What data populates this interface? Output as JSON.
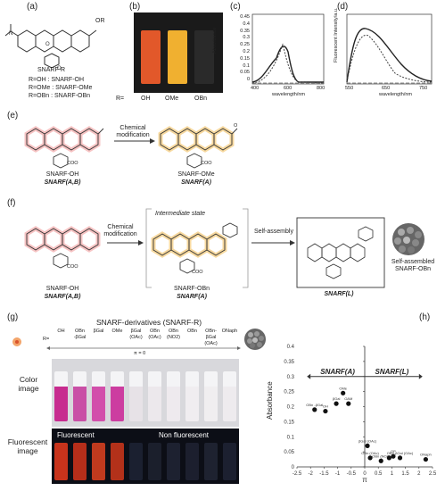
{
  "panel_labels": {
    "a": "(a)",
    "b": "(b)",
    "c": "(c)",
    "d": "(d)",
    "e": "(e)",
    "f": "(f)",
    "g": "(g)",
    "h": "(h)"
  },
  "panel_a": {
    "substituent": "OR",
    "name": "SNARF-R",
    "definitions": [
      "R=OH    : SNARF-OH",
      "R=OMe : SNARF-OMe",
      "R=OBn  : SNARF-OBn"
    ]
  },
  "panel_b": {
    "row_label": "R=",
    "samples": [
      "OH",
      "OMe",
      "OBn"
    ],
    "colors": [
      "#e2582a",
      "#f0b030",
      "#1a1a1a"
    ]
  },
  "panel_c": {
    "ylabel": "Absorbance",
    "xlabel": "wavelength/nm",
    "yticks": [
      "0.45",
      "0.4",
      "0.35",
      "0.3",
      "0.25",
      "0.2",
      "0.15",
      "0.1",
      "0.05",
      "0"
    ],
    "xticks": [
      "400",
      "600",
      "800"
    ]
  },
  "panel_d": {
    "ylabel": "Fluorescent Intensity/a.u.",
    "xlabel": "wavelength/nm",
    "xticks": [
      "550",
      "650",
      "750"
    ]
  },
  "panel_e": {
    "arrow_label_1": "Chemical",
    "arrow_label_2": "modification",
    "left_name": "SNARF-OH",
    "left_class": "SNARF(A,B)",
    "right_name": "SNARF-OMe",
    "right_class": "SNARF(A)",
    "coo": "COO",
    "ome": "O"
  },
  "panel_f": {
    "arrow_label_1": "Chemical",
    "arrow_label_2": "modification",
    "intermediate": "Intermediate state",
    "self_assembly": "Self-assembly",
    "left_name": "SNARF-OH",
    "left_class": "SNARF(A,B)",
    "mid_name": "SNARF-OBn",
    "mid_class": "SNARF(A)",
    "right_class": "SNARF(L)",
    "assembled_1": "Self-assembled",
    "assembled_2": "SNARF-OBn",
    "coo": "COO"
  },
  "panel_g": {
    "title": "SNARF-derivatives (SNARF-R)",
    "r_label": "R=",
    "derivatives": [
      {
        "top": "",
        "bottom": "OH"
      },
      {
        "top": "OBn",
        "bottom": "-βGal"
      },
      {
        "top": "",
        "bottom": "βGal"
      },
      {
        "top": "",
        "bottom": "OMe"
      },
      {
        "top": "βGal",
        "bottom": "(OAc)"
      },
      {
        "top": "OBn",
        "bottom": "(OAc)"
      },
      {
        "top": "OBn",
        "bottom": "(NO2)"
      },
      {
        "top": "",
        "bottom": "OBn"
      },
      {
        "top": "OBn-βGal",
        "bottom": "(OAc)"
      },
      {
        "top": "",
        "bottom": "ONaph"
      }
    ],
    "pi_label": "π = 0",
    "color_label_1": "Color",
    "color_label_2": "image",
    "fluor_label_1": "Fluorescent",
    "fluor_label_2": "image",
    "fluorescent_text": "Fluorescent",
    "non_fluorescent_text": "Non fluorescent",
    "vial_colors": [
      "#c72b8f",
      "#c94fa6",
      "#d24fab",
      "#cc3da0",
      "#e7e2e7",
      "#ece8ec",
      "#eeeaee",
      "#f0edf0",
      "#f0eef0",
      "#eeebee"
    ],
    "fluor_colors": [
      "#c7331c",
      "#b62e1a",
      "#c03a1e",
      "#b3311a",
      "#1b2030",
      "#1b1f2c",
      "#1d2130",
      "#1c1f2e",
      "#1e2230",
      "#1c2030"
    ]
  },
  "panel_h": {
    "ylabel": "Absorbance",
    "xlabel": "π",
    "left_region": "SNARF(A)",
    "right_region": "SNARF(L)"
  },
  "chart_data": {
    "type": "scatter",
    "title": "",
    "xlabel": "π",
    "ylabel": "Absorbance",
    "xlim": [
      -2.5,
      2.5
    ],
    "ylim": [
      0,
      0.4
    ],
    "xticks": [
      -2.5,
      -2,
      -1.5,
      -1,
      -0.5,
      0,
      0.5,
      1,
      1.5,
      2,
      2.5
    ],
    "yticks": [
      0,
      0.05,
      0.1,
      0.15,
      0.2,
      0.25,
      0.3,
      0.35,
      0.4
    ],
    "points": [
      {
        "label": "OBn -βGal",
        "x": -1.85,
        "y": 0.19
      },
      {
        "label": "OH",
        "x": -1.45,
        "y": 0.185
      },
      {
        "label": "βGal",
        "x": -1.05,
        "y": 0.21
      },
      {
        "label": "OMe",
        "x": -0.8,
        "y": 0.245
      },
      {
        "label": "OAM",
        "x": -0.6,
        "y": 0.21
      },
      {
        "label": "βGal (OAc)",
        "x": 0.1,
        "y": 0.07
      },
      {
        "label": "OBn (OAc)",
        "x": 0.2,
        "y": 0.03
      },
      {
        "label": "OBn (NO2)",
        "x": 0.6,
        "y": 0.02
      },
      {
        "label": "",
        "x": 0.9,
        "y": 0.03
      },
      {
        "label": "OP",
        "x": 1.05,
        "y": 0.035
      },
      {
        "label": "OBn-βGal (OAc)",
        "x": 1.3,
        "y": 0.03
      },
      {
        "label": "ONaph",
        "x": 2.25,
        "y": 0.025
      }
    ]
  }
}
